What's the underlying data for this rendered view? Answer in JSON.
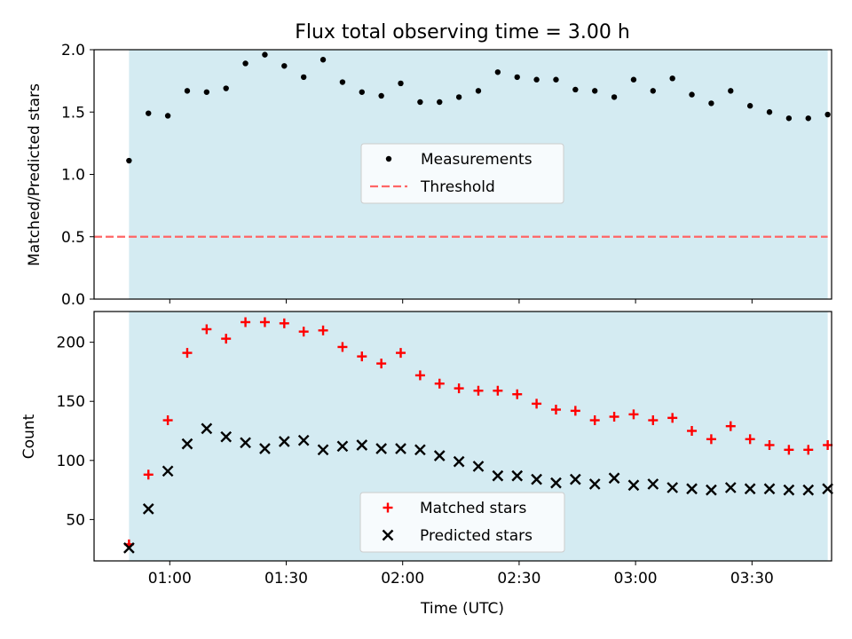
{
  "title": "Flux total observing time = 3.00 h",
  "colors": {
    "span": "#add8e6",
    "measurement": "#000000",
    "threshold": "#ff6666",
    "matched": "#ff0000",
    "predicted": "#000000"
  },
  "chart_data": [
    {
      "type": "scatter",
      "ylabel": "Matched/Predicted stars",
      "ylim": [
        0,
        2.0
      ],
      "yticks": [
        0.0,
        0.5,
        1.0,
        1.5,
        2.0
      ],
      "ytick_labels": [
        "0.0",
        "0.5",
        "1.0",
        "1.5",
        "2.0"
      ],
      "xlim_minutes": [
        40.5,
        230.5
      ],
      "xticks_minutes": [
        60,
        90,
        120,
        150,
        180,
        210
      ],
      "shaded_span_minutes": [
        49.5,
        229.5
      ],
      "threshold": 0.5,
      "legend_position": "center",
      "legend": [
        "Measurements",
        "Threshold"
      ],
      "series": [
        {
          "name": "Measurements",
          "marker": "dot",
          "x_minutes": [
            49.5,
            54.5,
            59.5,
            64.5,
            69.5,
            74.5,
            79.5,
            84.5,
            89.5,
            94.5,
            99.5,
            104.5,
            109.5,
            114.5,
            119.5,
            124.5,
            129.5,
            134.5,
            139.5,
            144.5,
            149.5,
            154.5,
            159.5,
            164.5,
            169.5,
            174.5,
            179.5,
            184.5,
            189.5,
            194.5,
            199.5,
            204.5,
            209.5,
            214.5,
            219.5,
            224.5,
            229.5
          ],
          "values": [
            1.11,
            1.49,
            1.47,
            1.67,
            1.66,
            1.69,
            1.89,
            1.96,
            1.87,
            1.78,
            1.92,
            1.74,
            1.66,
            1.63,
            1.73,
            1.58,
            1.58,
            1.62,
            1.67,
            1.82,
            1.78,
            1.76,
            1.76,
            1.68,
            1.67,
            1.62,
            1.76,
            1.67,
            1.77,
            1.64,
            1.57,
            1.67,
            1.55,
            1.5,
            1.45,
            1.45,
            1.48
          ]
        }
      ]
    },
    {
      "type": "scatter",
      "xlabel": "Time (UTC)",
      "ylabel": "Count",
      "ylim": [
        15,
        226
      ],
      "yticks": [
        50,
        100,
        150,
        200
      ],
      "ytick_labels": [
        "50",
        "100",
        "150",
        "200"
      ],
      "xlim_minutes": [
        40.5,
        230.5
      ],
      "xticks_minutes": [
        60,
        90,
        120,
        150,
        180,
        210
      ],
      "xtick_labels": [
        "01:00",
        "01:30",
        "02:00",
        "02:30",
        "03:00",
        "03:30"
      ],
      "shaded_span_minutes": [
        49.5,
        229.5
      ],
      "legend_position": "lower center",
      "legend": [
        "Matched stars",
        "Predicted stars"
      ],
      "series": [
        {
          "name": "Matched stars",
          "marker": "plus",
          "x_minutes": [
            49.5,
            54.5,
            59.5,
            64.5,
            69.5,
            74.5,
            79.5,
            84.5,
            89.5,
            94.5,
            99.5,
            104.5,
            109.5,
            114.5,
            119.5,
            124.5,
            129.5,
            134.5,
            139.5,
            144.5,
            149.5,
            154.5,
            159.5,
            164.5,
            169.5,
            174.5,
            179.5,
            184.5,
            189.5,
            194.5,
            199.5,
            204.5,
            209.5,
            214.5,
            219.5,
            224.5,
            229.5
          ],
          "values": [
            29,
            88,
            134,
            191,
            211,
            203,
            217,
            217,
            216,
            209,
            210,
            196,
            188,
            182,
            191,
            172,
            165,
            161,
            159,
            159,
            156,
            148,
            143,
            142,
            134,
            137,
            139,
            134,
            136,
            125,
            118,
            129,
            118,
            113,
            109,
            109,
            113
          ]
        },
        {
          "name": "Predicted stars",
          "marker": "x",
          "x_minutes": [
            49.5,
            54.5,
            59.5,
            64.5,
            69.5,
            74.5,
            79.5,
            84.5,
            89.5,
            94.5,
            99.5,
            104.5,
            109.5,
            114.5,
            119.5,
            124.5,
            129.5,
            134.5,
            139.5,
            144.5,
            149.5,
            154.5,
            159.5,
            164.5,
            169.5,
            174.5,
            179.5,
            184.5,
            189.5,
            194.5,
            199.5,
            204.5,
            209.5,
            214.5,
            219.5,
            224.5,
            229.5
          ],
          "values": [
            26,
            59,
            91,
            114,
            127,
            120,
            115,
            110,
            116,
            117,
            109,
            112,
            113,
            110,
            110,
            109,
            104,
            99,
            95,
            87,
            87,
            84,
            81,
            84,
            80,
            85,
            79,
            80,
            77,
            76,
            75,
            77,
            76,
            76,
            75,
            75,
            76
          ]
        }
      ]
    }
  ]
}
